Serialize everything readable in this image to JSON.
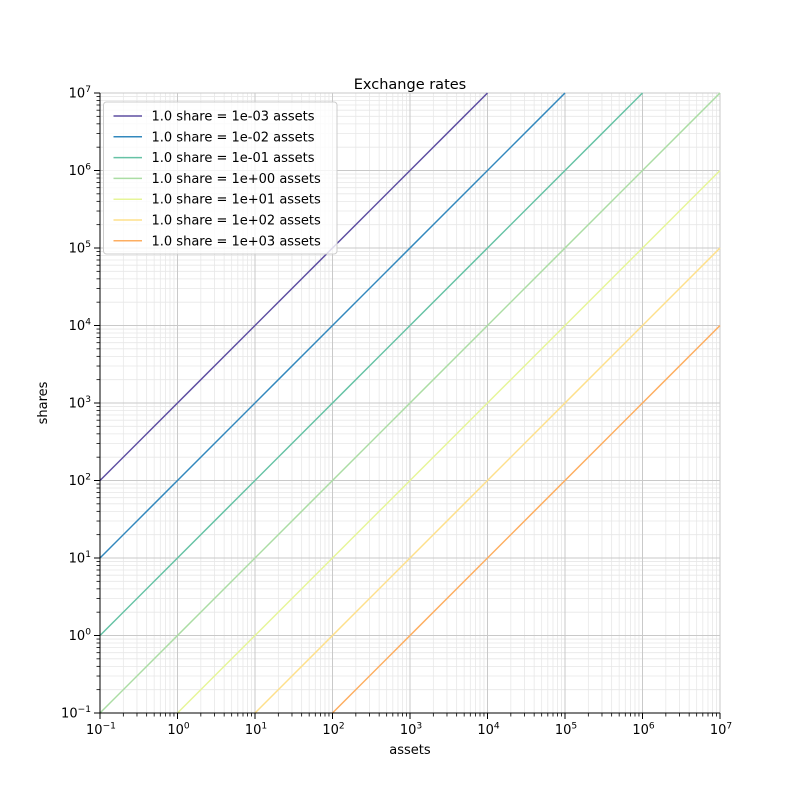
{
  "chart_data": {
    "type": "line",
    "title": "Exchange rates",
    "xlabel": "assets",
    "ylabel": "shares",
    "xscale": "log",
    "yscale": "log",
    "xlim": [
      0.1,
      10000000
    ],
    "ylim": [
      0.1,
      10000000
    ],
    "grid": {
      "major": true,
      "minor": true
    },
    "legend_position": "upper left",
    "tick_base": "10",
    "x_tick_exponents": [
      -1,
      0,
      1,
      2,
      3,
      4,
      5,
      6,
      7
    ],
    "y_tick_exponents": [
      -1,
      0,
      1,
      2,
      3,
      4,
      5,
      6,
      7
    ],
    "series": [
      {
        "label": "1.0 share = 1e-03 assets",
        "assets_per_share": 0.001,
        "relation": "shares = assets / 1e-03",
        "color": "#5e4fa2",
        "endpoints_log10": {
          "x": [
            -1,
            4
          ],
          "y": [
            2,
            7
          ]
        }
      },
      {
        "label": "1.0 share = 1e-02 assets",
        "assets_per_share": 0.01,
        "relation": "shares = assets / 1e-02",
        "color": "#3288bd",
        "endpoints_log10": {
          "x": [
            -1,
            5
          ],
          "y": [
            1,
            7
          ]
        }
      },
      {
        "label": "1.0 share = 1e-01 assets",
        "assets_per_share": 0.1,
        "relation": "shares = assets / 1e-01",
        "color": "#66c2a5",
        "endpoints_log10": {
          "x": [
            -1,
            6
          ],
          "y": [
            0,
            7
          ]
        }
      },
      {
        "label": "1.0 share = 1e+00 assets",
        "assets_per_share": 1.0,
        "relation": "shares = assets / 1e+00",
        "color": "#abdda4",
        "endpoints_log10": {
          "x": [
            -1,
            7
          ],
          "y": [
            -1,
            7
          ]
        }
      },
      {
        "label": "1.0 share = 1e+01 assets",
        "assets_per_share": 10.0,
        "relation": "shares = assets / 1e+01",
        "color": "#e6f598",
        "endpoints_log10": {
          "x": [
            0,
            7
          ],
          "y": [
            -1,
            6
          ]
        }
      },
      {
        "label": "1.0 share = 1e+02 assets",
        "assets_per_share": 100.0,
        "relation": "shares = assets / 1e+02",
        "color": "#fee08b",
        "endpoints_log10": {
          "x": [
            1,
            7
          ],
          "y": [
            -1,
            5
          ]
        }
      },
      {
        "label": "1.0 share = 1e+03 assets",
        "assets_per_share": 1000.0,
        "relation": "shares = assets / 1e+03",
        "color": "#fdae61",
        "endpoints_log10": {
          "x": [
            2,
            7
          ],
          "y": [
            -1,
            4
          ]
        }
      }
    ],
    "style": {
      "background": "#ffffff",
      "major_grid_color": "#c9c9c9",
      "minor_grid_color": "#e7e7e7",
      "spine_color": "#000000",
      "legend_border_color": "#cccccc",
      "legend_fill": "#ffffff"
    }
  }
}
